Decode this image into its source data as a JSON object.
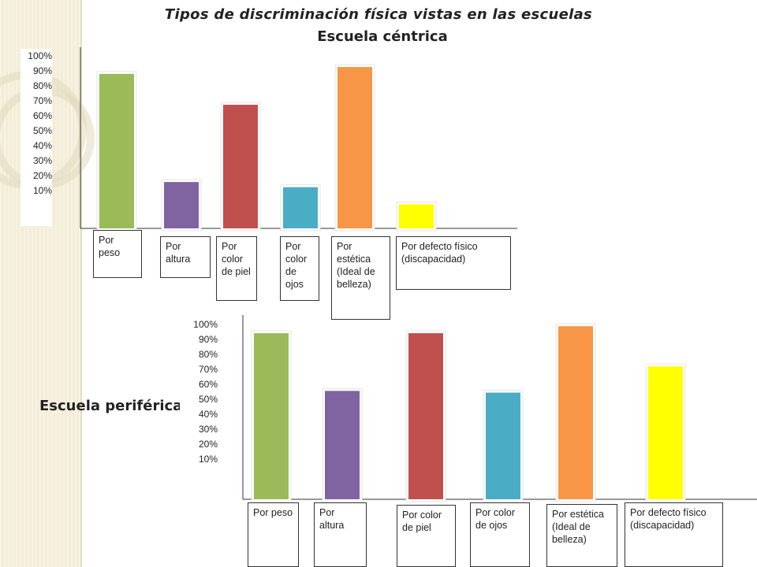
{
  "title": "Tipos de discriminación física vistas en las escuelas",
  "chart_data": [
    {
      "type": "bar",
      "title": "Escuela céntrica",
      "categories": [
        "Por peso",
        "Por altura",
        "Por color de piel",
        "Por color de ojos",
        "Por estética (Ideal de belleza)",
        "Por defecto físico (discapacidad)"
      ],
      "values": [
        90,
        27,
        72,
        24,
        94,
        14
      ],
      "colors": [
        "#9bbb59",
        "#8064a2",
        "#c0504d",
        "#4bacc6",
        "#f79646",
        "#ffff00"
      ],
      "yticks": [
        "100%",
        "90%",
        "80%",
        "70%",
        "60%",
        "50%",
        "40%",
        "30%",
        "20%",
        "10%"
      ],
      "ylim": [
        0,
        100
      ],
      "xlabel": "",
      "ylabel": ""
    },
    {
      "type": "bar",
      "title": "Escuela periférica",
      "categories": [
        "Por peso",
        "Por altura",
        "Por color de piel",
        "Por color de ojos",
        "Por estética (Ideal de belleza)",
        "Por defecto físico (discapacidad)"
      ],
      "values": [
        95,
        62,
        95,
        61,
        99,
        76
      ],
      "colors": [
        "#9bbb59",
        "#8064a2",
        "#c0504d",
        "#4bacc6",
        "#f79646",
        "#ffff00"
      ],
      "yticks": [
        "100%",
        "90%",
        "80%",
        "70%",
        "60%",
        "50%",
        "40%",
        "30%",
        "20%",
        "10%"
      ],
      "ylim": [
        0,
        100
      ],
      "xlabel": "",
      "ylabel": ""
    }
  ]
}
